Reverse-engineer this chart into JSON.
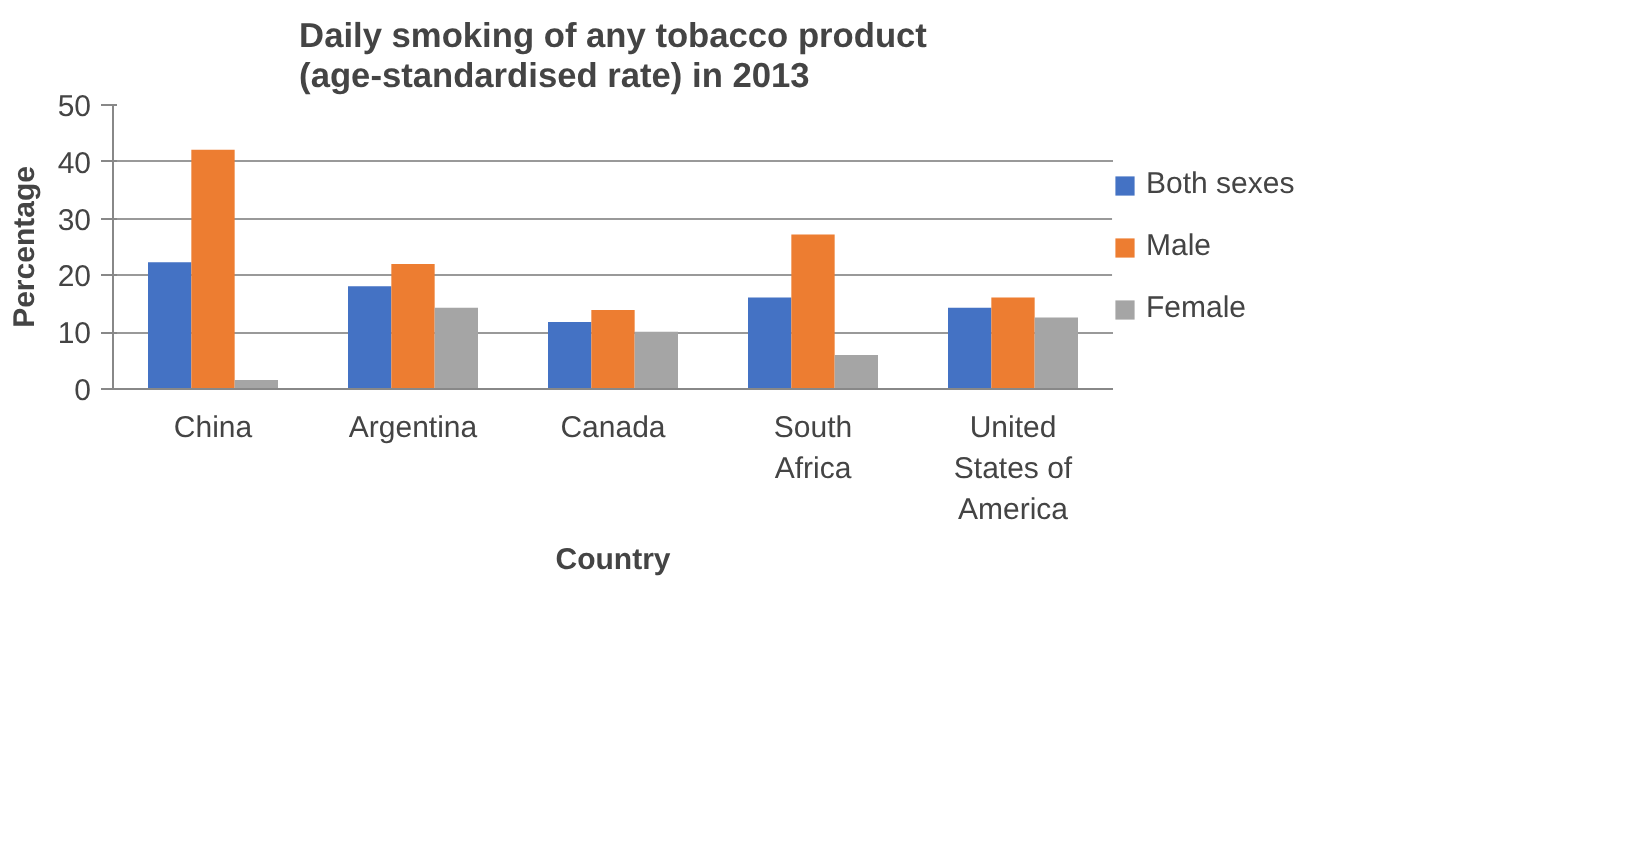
{
  "chart_data": {
    "type": "bar",
    "title": "Daily smoking of any tobacco product\n(age-standardised rate) in 2013",
    "xlabel": "Country",
    "ylabel": "Percentage",
    "categories": [
      "China",
      "Argentina",
      "Canada",
      "South Africa",
      "United States of America"
    ],
    "series": [
      {
        "name": "Both sexes",
        "color": "#4472c4",
        "values": [
          22.3,
          18.1,
          11.8,
          16.1,
          14.3
        ]
      },
      {
        "name": "Male",
        "color": "#ed7d31",
        "values": [
          42.1,
          22.0,
          13.9,
          27.2,
          16.1
        ]
      },
      {
        "name": "Female",
        "color": "#a5a5a5",
        "values": [
          1.6,
          14.3,
          10.1,
          6.0,
          12.6
        ]
      }
    ],
    "ylim": [
      0,
      50
    ],
    "yticks": [
      0,
      10,
      20,
      30,
      40,
      50
    ],
    "grid": "y",
    "legend": "right"
  }
}
